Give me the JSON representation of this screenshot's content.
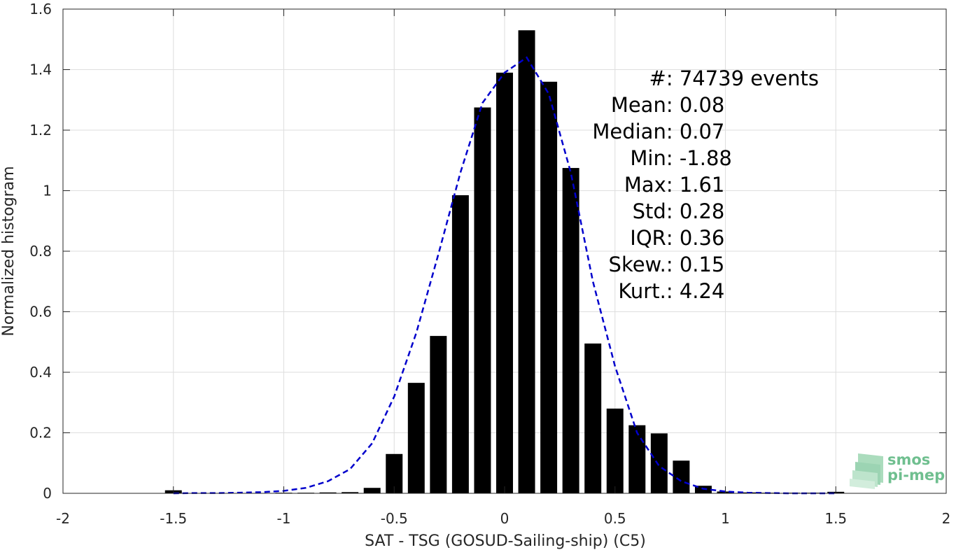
{
  "chart_data": {
    "type": "bar",
    "xlabel": "SAT - TSG (GOSUD-Sailing-ship) (C5)",
    "ylabel": "Normalized histogram",
    "xlim": [
      -2,
      2
    ],
    "ylim": [
      0,
      1.6
    ],
    "x_ticks": [
      -2,
      -1.5,
      -1,
      -0.5,
      0,
      0.5,
      1,
      1.5,
      2
    ],
    "x_tick_labels": [
      "-2",
      "-1.5",
      "-1",
      "-0.5",
      "0",
      "0.5",
      "1",
      "1.5",
      "2"
    ],
    "y_ticks": [
      0,
      0.2,
      0.4,
      0.6,
      0.8,
      1,
      1.2,
      1.4,
      1.6
    ],
    "y_tick_labels": [
      "0",
      "0.2",
      "0.4",
      "0.6",
      "0.8",
      "1",
      "1.2",
      "1.4",
      "1.6"
    ],
    "grid": true,
    "bar_color": "#000000",
    "fit_color": "#0000cc",
    "bars": {
      "x": [
        -1.5,
        -1.4,
        -1.3,
        -1.2,
        -1.1,
        -1.0,
        -0.9,
        -0.8,
        -0.7,
        -0.6,
        -0.5,
        -0.4,
        -0.3,
        -0.2,
        -0.1,
        0.0,
        0.1,
        0.2,
        0.3,
        0.4,
        0.5,
        0.6,
        0.7,
        0.8,
        0.9,
        1.0,
        1.1,
        1.2,
        1.3,
        1.4,
        1.5
      ],
      "values": [
        0.01,
        0.001,
        0.001,
        0.001,
        0.001,
        0.002,
        0.002,
        0.003,
        0.004,
        0.018,
        0.13,
        0.365,
        0.52,
        0.985,
        1.275,
        1.39,
        1.53,
        1.36,
        1.075,
        0.495,
        0.28,
        0.225,
        0.198,
        0.108,
        0.025,
        0.006,
        0.003,
        0.002,
        0.002,
        0.002,
        0.005
      ]
    },
    "fit_curve": {
      "name": "",
      "style": "dashed",
      "x": [
        -1.5,
        -1.4,
        -1.3,
        -1.2,
        -1.1,
        -1.0,
        -0.9,
        -0.8,
        -0.7,
        -0.6,
        -0.5,
        -0.4,
        -0.3,
        -0.2,
        -0.1,
        0.0,
        0.1,
        0.2,
        0.3,
        0.4,
        0.5,
        0.6,
        0.7,
        0.8,
        0.9,
        1.0,
        1.1,
        1.2,
        1.3,
        1.4,
        1.5
      ],
      "values": [
        0.0,
        0.001,
        0.001,
        0.002,
        0.004,
        0.008,
        0.018,
        0.04,
        0.08,
        0.165,
        0.32,
        0.53,
        0.79,
        1.06,
        1.29,
        1.39,
        1.44,
        1.32,
        1.06,
        0.7,
        0.42,
        0.2,
        0.09,
        0.04,
        0.015,
        0.006,
        0.002,
        0.001,
        0.0,
        0.0,
        0.0
      ]
    },
    "annotations": [
      {
        "id": "count",
        "label": "#  ",
        "value": ": 74739 events"
      },
      {
        "id": "mean",
        "label": "Mean ",
        "value": ": 0.08"
      },
      {
        "id": "median",
        "label": "Median ",
        "value": ": 0.07"
      },
      {
        "id": "min",
        "label": "Min ",
        "value": ": -1.88"
      },
      {
        "id": "max",
        "label": "Max ",
        "value": ": 1.61"
      },
      {
        "id": "std",
        "label": "Std ",
        "value": ": 0.28"
      },
      {
        "id": "iqr",
        "label": "IQR ",
        "value": ": 0.36"
      },
      {
        "id": "skew",
        "label": "Skew. ",
        "value": ": 0.15"
      },
      {
        "id": "kurt",
        "label": "Kurt. ",
        "value": ": 4.24"
      }
    ]
  },
  "logo": {
    "line1": "smos",
    "line2": "pi-mep",
    "color": "#6fbf8f"
  }
}
